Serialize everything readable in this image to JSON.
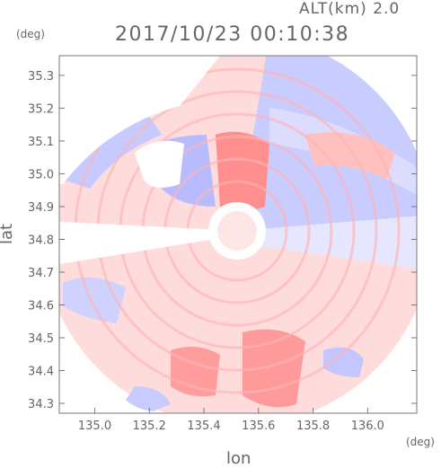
{
  "header": {
    "altitude_label": "ALT(km) 2.0",
    "timestamp": "2017/10/23 00:10:38"
  },
  "axes": {
    "y_unit": "(deg)",
    "x_unit": "(deg)",
    "y_label": "lat",
    "x_label": "lon",
    "x_ticks": [
      "135.0",
      "135.2",
      "135.4",
      "135.6",
      "135.8",
      "136.0"
    ],
    "y_ticks": [
      "35.3",
      "35.2",
      "35.1",
      "35.0",
      "34.9",
      "34.8",
      "34.7",
      "34.6",
      "34.5",
      "34.4",
      "34.3"
    ]
  },
  "map": {
    "type": "radar-ppi",
    "lon_range": [
      134.87,
      136.18
    ],
    "lat_range": [
      34.27,
      35.36
    ],
    "radar_site": {
      "lon": 135.52,
      "lat": 34.82
    },
    "colors": {
      "toward": "#ff8a8a",
      "away": "#9aa2ff",
      "axis": "#777777"
    }
  }
}
